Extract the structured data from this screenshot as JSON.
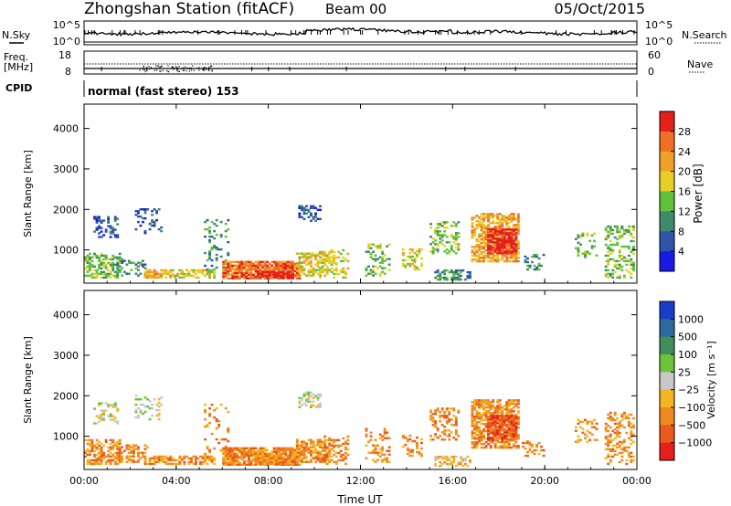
{
  "header": {
    "title": "Zhongshan Station (fitACF)",
    "beam": "Beam 00",
    "date": "05/Oct/2015"
  },
  "nsky_panel": {
    "left_label": "N.Sky",
    "left_ticks": [
      "10^5",
      "10^0"
    ],
    "right_label": "N.Search",
    "right_ticks": [
      "10^5",
      "10^0"
    ]
  },
  "freq_panel": {
    "left_label_1": "Freq.",
    "left_label_2": "[MHz]",
    "left_ticks": [
      "18",
      "8"
    ],
    "right_label": "Nave",
    "right_ticks": [
      "60",
      "0"
    ]
  },
  "cpid": {
    "label": "CPID",
    "value": "normal (fast stereo) 153"
  },
  "chart_data": [
    {
      "type": "heatmap",
      "name": "power",
      "ylabel": "Slant Range [km]",
      "xlabel": "",
      "x_ticks": [
        "00:00",
        "04:00",
        "08:00",
        "12:00",
        "16:00",
        "20:00",
        "00:00"
      ],
      "y_ticks": [
        "1000",
        "2000",
        "3000",
        "4000"
      ],
      "ylim": [
        180,
        4600
      ],
      "colorbar_label": "Power [dB]",
      "colorbar_ticks": [
        "4",
        "8",
        "12",
        "16",
        "20",
        "24",
        "28"
      ],
      "colors": [
        "#1a1ae6",
        "#2e55a8",
        "#3f8a6b",
        "#5fc23a",
        "#e7cf25",
        "#f0a12a",
        "#ef7024",
        "#e3201c"
      ]
    },
    {
      "type": "heatmap",
      "name": "velocity",
      "ylabel": "Slant Range [km]",
      "xlabel": "Time UT",
      "x_ticks": [
        "00:00",
        "04:00",
        "08:00",
        "12:00",
        "16:00",
        "20:00",
        "00:00"
      ],
      "y_ticks": [
        "1000",
        "2000",
        "3000",
        "4000"
      ],
      "ylim": [
        180,
        4600
      ],
      "colorbar_label": "Velocity [m s⁻¹]",
      "colorbar_ticks": [
        "1000",
        "500",
        "100",
        "25",
        "−25",
        "−100",
        "−500",
        "−1000"
      ],
      "colors": [
        "#1a3cc8",
        "#2e6a9e",
        "#3f8f5a",
        "#6fc23a",
        "#c8c8c8",
        "#f2b720",
        "#f08a20",
        "#ea5a1e",
        "#e3201c"
      ]
    }
  ]
}
